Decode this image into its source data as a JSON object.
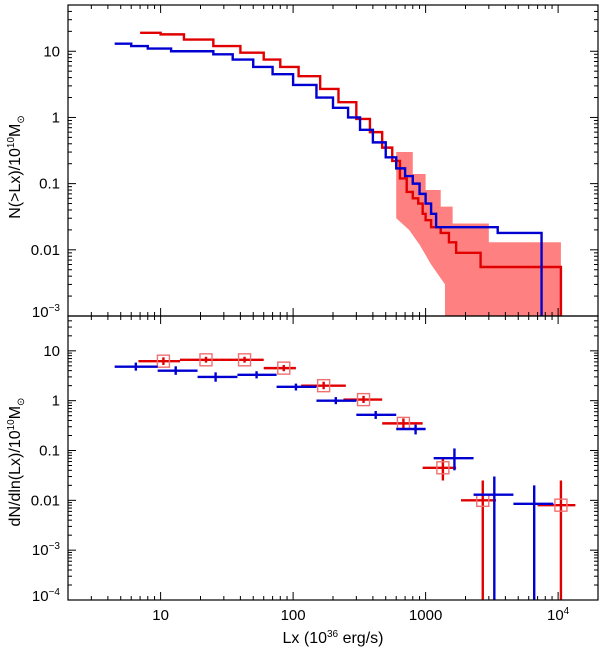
{
  "chart_data": [
    {
      "type": "line",
      "panel": "top",
      "title": "",
      "xlabel": "Lx (10^36 erg/s)",
      "ylabel": "N(>Lx)/10^10 M_sun",
      "xscale": "log",
      "yscale": "log",
      "xlim": [
        2,
        20000
      ],
      "ylim": [
        0.001,
        50
      ],
      "grid": false,
      "x_ticks": [
        10,
        100,
        1000,
        10000
      ],
      "y_ticks": [
        {
          "value": 0.001,
          "label": "10",
          "sup": "−3"
        },
        {
          "value": 0.01,
          "label": "0.01"
        },
        {
          "value": 0.1,
          "label": "0.1"
        },
        {
          "value": 1,
          "label": "1"
        },
        {
          "value": 10,
          "label": "10"
        }
      ],
      "series": [
        {
          "name": "red",
          "color": "#e00000",
          "step": true,
          "points": [
            [
              7,
              19
            ],
            [
              10,
              18
            ],
            [
              15,
              15
            ],
            [
              25,
              12
            ],
            [
              40,
              9.5
            ],
            [
              60,
              7.5
            ],
            [
              80,
              5.8
            ],
            [
              110,
              4.2
            ],
            [
              160,
              2.7
            ],
            [
              220,
              1.7
            ],
            [
              300,
              0.95
            ],
            [
              380,
              0.6
            ],
            [
              470,
              0.35
            ],
            [
              560,
              0.22
            ],
            [
              640,
              0.12
            ],
            [
              720,
              0.075
            ],
            [
              800,
              0.06
            ],
            [
              880,
              0.05
            ],
            [
              950,
              0.035
            ],
            [
              1000,
              0.028
            ],
            [
              1100,
              0.022
            ],
            [
              1300,
              0.018
            ],
            [
              1500,
              0.013
            ],
            [
              1700,
              0.009
            ],
            [
              2600,
              0.009
            ],
            [
              2600,
              0.0055
            ],
            [
              10500,
              0.0055
            ],
            [
              10500,
              0.001
            ]
          ],
          "band": {
            "color": "#ff8080",
            "upper": [
              [
                600,
                0.3
              ],
              [
                800,
                0.14
              ],
              [
                1000,
                0.08
              ],
              [
                1300,
                0.045
              ],
              [
                1600,
                0.025
              ],
              [
                3000,
                0.013
              ],
              [
                10500,
                0.012
              ]
            ],
            "lower": [
              [
                10500,
                0.001
              ],
              [
                1400,
                0.001
              ],
              [
                1400,
                0.003
              ],
              [
                1100,
                0.006
              ],
              [
                900,
                0.012
              ],
              [
                750,
                0.02
              ],
              [
                600,
                0.03
              ]
            ]
          }
        },
        {
          "name": "blue",
          "color": "#0000d0",
          "step": true,
          "points": [
            [
              4.5,
              13
            ],
            [
              6,
              12
            ],
            [
              8,
              11
            ],
            [
              12,
              10
            ],
            [
              18,
              10
            ],
            [
              25,
              9
            ],
            [
              35,
              7.5
            ],
            [
              50,
              5.8
            ],
            [
              70,
              4.5
            ],
            [
              100,
              3.1
            ],
            [
              150,
              2.0
            ],
            [
              200,
              1.4
            ],
            [
              260,
              1.0
            ],
            [
              320,
              0.65
            ],
            [
              400,
              0.42
            ],
            [
              500,
              0.25
            ],
            [
              600,
              0.17
            ],
            [
              700,
              0.13
            ],
            [
              800,
              0.1
            ],
            [
              900,
              0.07
            ],
            [
              1000,
              0.05
            ],
            [
              1100,
              0.035
            ],
            [
              1200,
              0.022
            ],
            [
              3500,
              0.022
            ],
            [
              3500,
              0.018
            ],
            [
              7500,
              0.018
            ],
            [
              7500,
              0.001
            ]
          ]
        }
      ]
    },
    {
      "type": "scatter",
      "panel": "bottom",
      "title": "",
      "xlabel": "Lx (10^36 erg/s)",
      "ylabel": "dN/dln(Lx)/10^10 M_sun",
      "xscale": "log",
      "yscale": "log",
      "xlim": [
        2,
        20000
      ],
      "ylim": [
        0.0001,
        50
      ],
      "grid": false,
      "x_ticks": [
        10,
        100,
        1000,
        10000
      ],
      "y_ticks": [
        {
          "value": 0.0001,
          "label": "10",
          "sup": "−4"
        },
        {
          "value": 0.001,
          "label": "10",
          "sup": "−3"
        },
        {
          "value": 0.01,
          "label": "0.01"
        },
        {
          "value": 0.1,
          "label": "0.1"
        },
        {
          "value": 1,
          "label": "1"
        },
        {
          "value": 10,
          "label": "10"
        }
      ],
      "series": [
        {
          "name": "red",
          "color": "#e00000",
          "marker": "open-square",
          "points": [
            {
              "x": 10.5,
              "y": 6.2,
              "xlo": 6.8,
              "xhi": 14,
              "ylo": 5.2,
              "yhi": 7.4
            },
            {
              "x": 22,
              "y": 6.6,
              "xlo": 14,
              "xhi": 28,
              "ylo": 5.8,
              "yhi": 7.6
            },
            {
              "x": 43,
              "y": 6.6,
              "xlo": 28,
              "xhi": 60,
              "ylo": 5.8,
              "yhi": 7.6
            },
            {
              "x": 85,
              "y": 4.5,
              "xlo": 60,
              "xhi": 105,
              "ylo": 3.9,
              "yhi": 5.2
            },
            {
              "x": 170,
              "y": 2.0,
              "xlo": 115,
              "xhi": 250,
              "ylo": 1.7,
              "yhi": 2.4
            },
            {
              "x": 340,
              "y": 1.05,
              "xlo": 240,
              "xhi": 470,
              "ylo": 0.9,
              "yhi": 1.25
            },
            {
              "x": 680,
              "y": 0.35,
              "xlo": 470,
              "xhi": 950,
              "ylo": 0.28,
              "yhi": 0.44
            },
            {
              "x": 1350,
              "y": 0.045,
              "xlo": 950,
              "xhi": 1700,
              "ylo": 0.025,
              "yhi": 0.07
            },
            {
              "x": 2700,
              "y": 0.01,
              "xlo": 1850,
              "xhi": 3400,
              "ylo": 0.0001,
              "yhi": 0.025
            },
            {
              "x": 10500,
              "y": 0.008,
              "xlo": 7000,
              "xhi": 13500,
              "ylo": 0.0001,
              "yhi": 0.025
            }
          ]
        },
        {
          "name": "blue",
          "color": "#0000d0",
          "marker": "cross",
          "points": [
            {
              "x": 6.5,
              "y": 4.8,
              "xlo": 4.5,
              "xhi": 9.5,
              "ylo": 4.0,
              "yhi": 5.8
            },
            {
              "x": 13,
              "y": 4.0,
              "xlo": 9.5,
              "xhi": 19,
              "ylo": 3.3,
              "yhi": 4.9
            },
            {
              "x": 26,
              "y": 3.0,
              "xlo": 19,
              "xhi": 38,
              "ylo": 2.4,
              "yhi": 3.7
            },
            {
              "x": 53,
              "y": 3.3,
              "xlo": 38,
              "xhi": 75,
              "ylo": 2.8,
              "yhi": 3.9
            },
            {
              "x": 105,
              "y": 1.9,
              "xlo": 75,
              "xhi": 150,
              "ylo": 1.6,
              "yhi": 2.2
            },
            {
              "x": 210,
              "y": 1.0,
              "xlo": 150,
              "xhi": 300,
              "ylo": 0.85,
              "yhi": 1.18
            },
            {
              "x": 420,
              "y": 0.52,
              "xlo": 300,
              "xhi": 600,
              "ylo": 0.43,
              "yhi": 0.62
            },
            {
              "x": 840,
              "y": 0.27,
              "xlo": 600,
              "xhi": 1000,
              "ylo": 0.21,
              "yhi": 0.33
            },
            {
              "x": 1650,
              "y": 0.07,
              "xlo": 1150,
              "xhi": 2300,
              "ylo": 0.04,
              "yhi": 0.11
            },
            {
              "x": 3300,
              "y": 0.013,
              "xlo": 2300,
              "xhi": 4600,
              "ylo": 0.0001,
              "yhi": 0.03
            },
            {
              "x": 6600,
              "y": 0.0085,
              "xlo": 4600,
              "xhi": 9200,
              "ylo": 0.0001,
              "yhi": 0.02
            }
          ]
        }
      ]
    }
  ],
  "shared_x_tick_labels": [
    {
      "value": 10,
      "label": "10"
    },
    {
      "value": 100,
      "label": "100"
    },
    {
      "value": 1000,
      "label": "1000"
    },
    {
      "value": 10000,
      "label": "10",
      "sup": "4"
    }
  ],
  "labels": {
    "xlabel_main": "Lx (10",
    "xlabel_sup": "36",
    "xlabel_rest": " erg/s)",
    "top_ylabel_main": "N(>Lx)/10",
    "top_ylabel_sup": "10",
    "top_ylabel_unit": "M",
    "top_ylabel_sub": "⊙",
    "bottom_ylabel_main": "dN/dln(Lx)/10",
    "bottom_ylabel_sup": "10",
    "bottom_ylabel_unit": "M",
    "bottom_ylabel_sub": "⊙"
  }
}
